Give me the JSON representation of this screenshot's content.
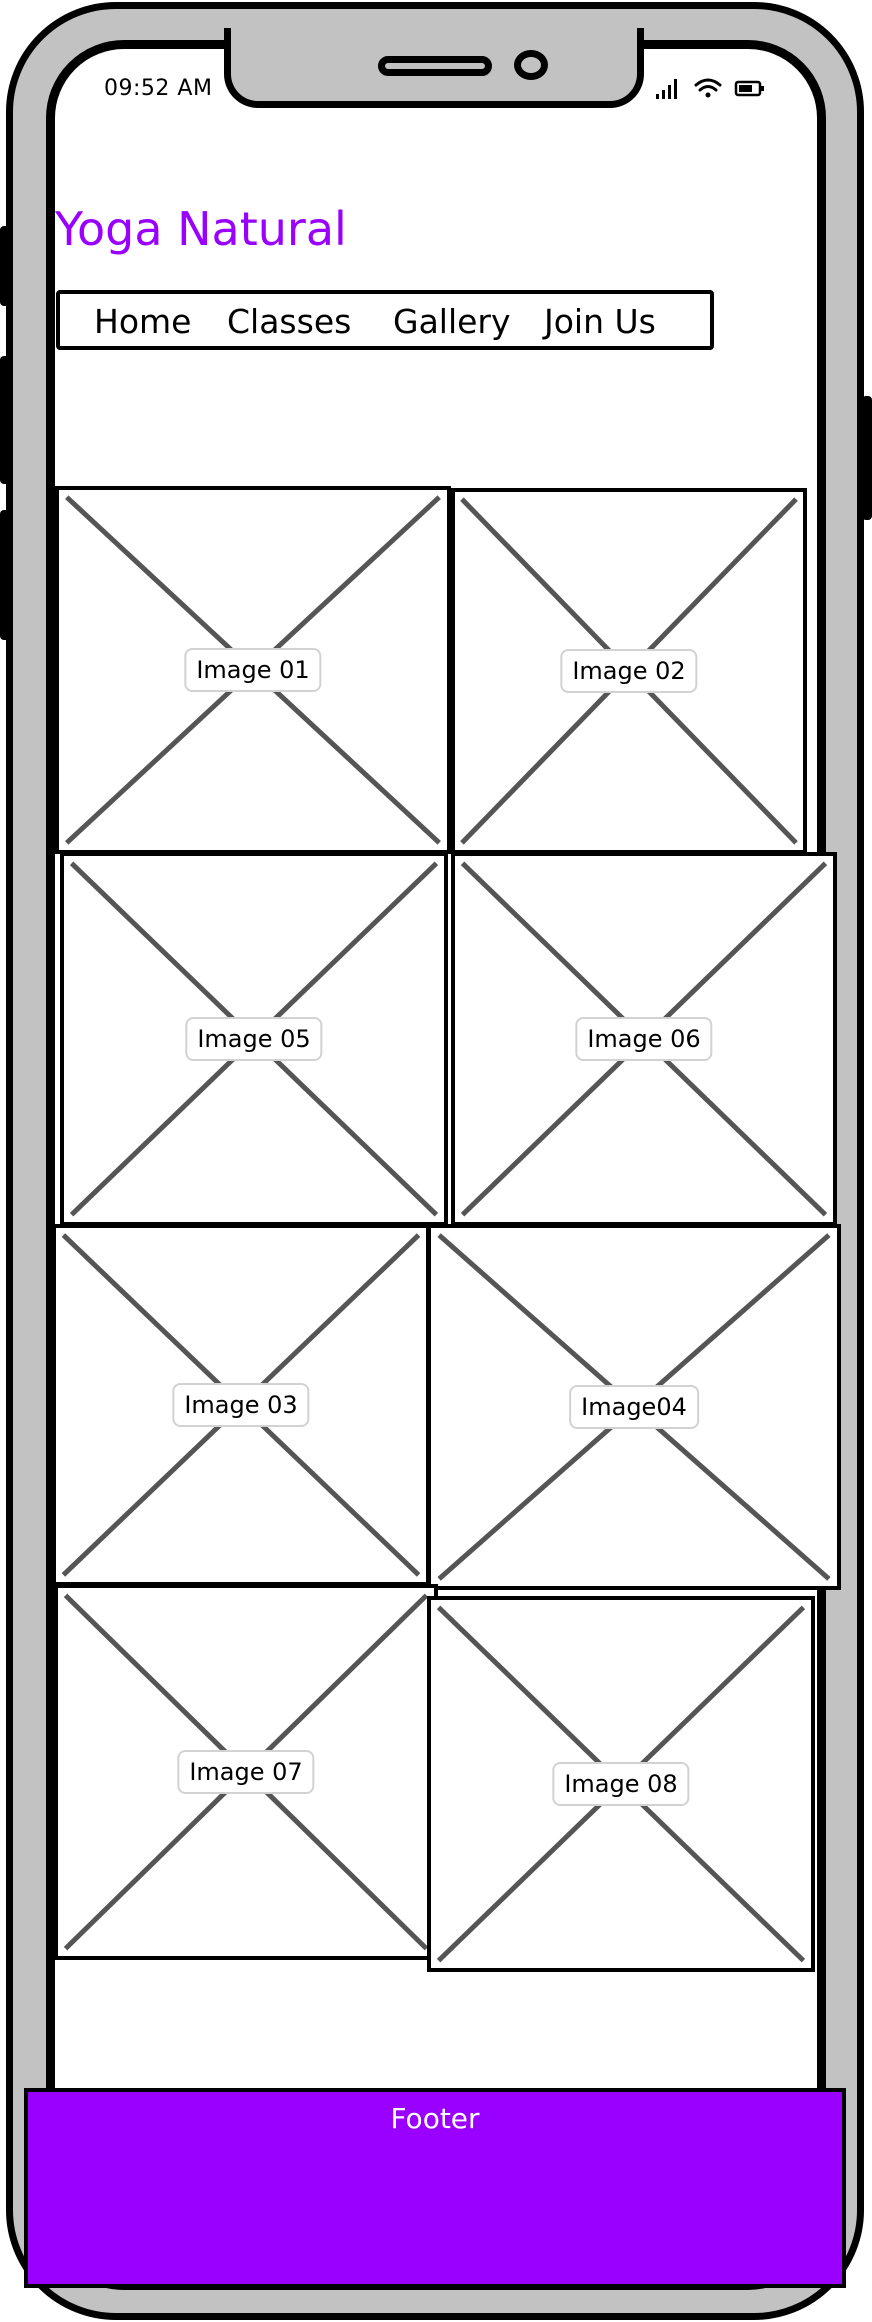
{
  "status_bar": {
    "time": "09:52 AM",
    "icons": [
      "signal-icon",
      "wifi-icon",
      "battery-icon"
    ]
  },
  "header": {
    "brand": "Yoga Natural",
    "brand_color": "#9900ff"
  },
  "nav": {
    "items": [
      {
        "label": "Home"
      },
      {
        "label": "Classes"
      },
      {
        "label": "Gallery"
      },
      {
        "label": "Join Us"
      }
    ]
  },
  "gallery": {
    "images": [
      {
        "label": "Image 01"
      },
      {
        "label": "Image 02"
      },
      {
        "label": "Image 05"
      },
      {
        "label": "Image 06"
      },
      {
        "label": "Image 03"
      },
      {
        "label": "Image04"
      },
      {
        "label": "Image 07"
      },
      {
        "label": "Image 08"
      }
    ]
  },
  "footer": {
    "label": "Footer",
    "color": "#9900ff"
  }
}
